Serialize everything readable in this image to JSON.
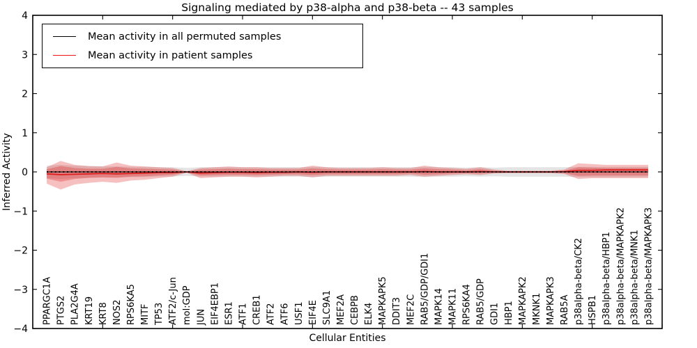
{
  "figure": {
    "title": "Signaling mediated by p38-alpha and p38-beta -- 43 samples",
    "xlabel": "Cellular Entities",
    "ylabel": "Inferred Activity"
  },
  "legend": {
    "items": [
      {
        "name": "permuted-mean",
        "label": "Mean activity in all permuted samples",
        "color": "#000000"
      },
      {
        "name": "patient-mean",
        "label": "Mean activity in patient samples",
        "color": "#ee1111"
      }
    ]
  },
  "chart_data": {
    "type": "line",
    "title": "Signaling mediated by p38-alpha and p38-beta -- 43 samples",
    "xlabel": "Cellular Entities",
    "ylabel": "Inferred Activity",
    "ylim": [
      -4,
      4
    ],
    "yticks": [
      4,
      3,
      2,
      1,
      0,
      -1,
      -2,
      -3,
      -4
    ],
    "ytick_labels": [
      "4",
      "3",
      "2",
      "1",
      "0",
      "−1",
      "−2",
      "−3",
      "−4"
    ],
    "xlim": [
      0,
      45
    ],
    "xticks_numeric": [
      0,
      5,
      10,
      15,
      20,
      25,
      30,
      35,
      40,
      45
    ],
    "grid": false,
    "legend_position": "upper-left",
    "categories": [
      "PPARGC1A",
      "PTGS2",
      "PLA2G4A",
      "KRT19",
      "KRT8",
      "NOS2",
      "RPS6KA5",
      "MITF",
      "TP53",
      "ATF2/c-Jun",
      "mol:GDP",
      "JUN",
      "EIF4EBP1",
      "ESR1",
      "ATF1",
      "CREB1",
      "ATF2",
      "ATF6",
      "USF1",
      "EIF4E",
      "SLC9A1",
      "MEF2A",
      "CEBPB",
      "ELK4",
      "MAPKAPK5",
      "DDIT3",
      "MEF2C",
      "RAB5/GDP/GDI1",
      "MAPK14",
      "MAPK11",
      "RPS6KA4",
      "RAB5/GDP",
      "GDI1",
      "HBP1",
      "MAPKAPK2",
      "MKNK1",
      "MAPKAPK3",
      "RAB5A",
      "p38alpha-beta/CK2",
      "HSPB1",
      "p38alpha-beta/HBP1",
      "p38alpha-beta/MAPKAPK2",
      "p38alpha-beta/MNK1",
      "p38alpha-beta/MAPKAPK3"
    ],
    "series": [
      {
        "name": "Mean activity in all permuted samples",
        "color": "#000000",
        "style": "dotted",
        "values": [
          0,
          0,
          0,
          0,
          0,
          0,
          0,
          0,
          0,
          0,
          0,
          0,
          0,
          0,
          0,
          0,
          0,
          0,
          0,
          0,
          0,
          0,
          0,
          0,
          0,
          0,
          0,
          0,
          0,
          0,
          0,
          0,
          0,
          0,
          0,
          0,
          0,
          0,
          0,
          0,
          0,
          0,
          0,
          0
        ]
      },
      {
        "name": "Mean activity in patient samples",
        "color": "#dd1e1e",
        "style": "solid",
        "values": [
          -0.05,
          -0.07,
          -0.06,
          -0.05,
          -0.04,
          -0.05,
          -0.04,
          -0.03,
          -0.02,
          -0.02,
          0,
          -0.03,
          -0.02,
          -0.01,
          -0.01,
          -0.02,
          -0.01,
          -0.01,
          0,
          -0.01,
          0,
          0,
          0,
          0,
          0,
          0,
          0,
          0.01,
          0,
          0,
          0,
          0.01,
          0,
          0,
          0,
          0,
          0,
          0.01,
          0.04,
          0.04,
          0.05,
          0.05,
          0.05,
          0.05
        ]
      }
    ],
    "bands": [
      {
        "name": "permuted-samples-range",
        "color": "rgba(130,130,130,0.22)",
        "upper": [
          0.16,
          0.18,
          0.16,
          0.15,
          0.14,
          0.14,
          0.13,
          0.13,
          0.12,
          0.12,
          0.1,
          0.12,
          0.12,
          0.12,
          0.12,
          0.12,
          0.12,
          0.12,
          0.12,
          0.13,
          0.12,
          0.12,
          0.12,
          0.12,
          0.12,
          0.12,
          0.12,
          0.13,
          0.12,
          0.12,
          0.11,
          0.12,
          0.11,
          0.12,
          0.12,
          0.12,
          0.12,
          0.12,
          0.13,
          0.13,
          0.13,
          0.13,
          0.13,
          0.13
        ],
        "lower": [
          -0.16,
          -0.18,
          -0.16,
          -0.15,
          -0.14,
          -0.14,
          -0.13,
          -0.13,
          -0.12,
          -0.12,
          -0.1,
          -0.12,
          -0.12,
          -0.12,
          -0.12,
          -0.12,
          -0.12,
          -0.12,
          -0.12,
          -0.13,
          -0.12,
          -0.12,
          -0.12,
          -0.12,
          -0.12,
          -0.12,
          -0.12,
          -0.13,
          -0.12,
          -0.12,
          -0.11,
          -0.12,
          -0.11,
          -0.12,
          -0.12,
          -0.12,
          -0.12,
          -0.12,
          -0.13,
          -0.13,
          -0.13,
          -0.13,
          -0.13,
          -0.13
        ]
      },
      {
        "name": "patient-samples-outer-range",
        "color": "rgba(221,30,30,0.28)",
        "upper": [
          0.12,
          0.28,
          0.18,
          0.15,
          0.14,
          0.24,
          0.16,
          0.14,
          0.12,
          0.1,
          0.02,
          0.1,
          0.12,
          0.14,
          0.12,
          0.12,
          0.1,
          0.1,
          0.1,
          0.16,
          0.12,
          0.1,
          0.1,
          0.1,
          0.12,
          0.1,
          0.1,
          0.16,
          0.12,
          0.1,
          0.08,
          0.12,
          0.06,
          0.03,
          0.03,
          0.03,
          0.03,
          0.06,
          0.22,
          0.2,
          0.18,
          0.18,
          0.18,
          0.18
        ],
        "lower": [
          -0.3,
          -0.45,
          -0.32,
          -0.28,
          -0.25,
          -0.28,
          -0.22,
          -0.2,
          -0.16,
          -0.12,
          -0.02,
          -0.16,
          -0.14,
          -0.12,
          -0.12,
          -0.14,
          -0.12,
          -0.1,
          -0.1,
          -0.14,
          -0.1,
          -0.1,
          -0.1,
          -0.1,
          -0.1,
          -0.1,
          -0.08,
          -0.12,
          -0.1,
          -0.08,
          -0.06,
          -0.08,
          -0.04,
          -0.03,
          -0.03,
          -0.03,
          -0.03,
          -0.05,
          -0.18,
          -0.16,
          -0.16,
          -0.16,
          -0.16,
          -0.16
        ]
      },
      {
        "name": "patient-samples-inner-range",
        "color": "rgba(221,30,30,0.30)",
        "upper": [
          0.07,
          0.15,
          0.1,
          0.08,
          0.08,
          0.13,
          0.09,
          0.08,
          0.07,
          0.06,
          0.01,
          0.06,
          0.07,
          0.08,
          0.07,
          0.07,
          0.06,
          0.06,
          0.06,
          0.09,
          0.07,
          0.06,
          0.06,
          0.06,
          0.07,
          0.06,
          0.06,
          0.09,
          0.07,
          0.06,
          0.04,
          0.07,
          0.03,
          0.02,
          0.02,
          0.02,
          0.02,
          0.03,
          0.12,
          0.11,
          0.1,
          0.1,
          0.1,
          0.1
        ],
        "lower": [
          -0.17,
          -0.25,
          -0.18,
          -0.15,
          -0.14,
          -0.15,
          -0.12,
          -0.11,
          -0.09,
          -0.07,
          -0.01,
          -0.09,
          -0.08,
          -0.07,
          -0.07,
          -0.08,
          -0.07,
          -0.06,
          -0.06,
          -0.08,
          -0.06,
          -0.06,
          -0.06,
          -0.06,
          -0.06,
          -0.06,
          -0.04,
          -0.07,
          -0.06,
          -0.04,
          -0.03,
          -0.04,
          -0.02,
          -0.02,
          -0.02,
          -0.02,
          -0.02,
          -0.03,
          -0.1,
          -0.09,
          -0.09,
          -0.09,
          -0.09,
          -0.09
        ]
      }
    ],
    "colors": {
      "patient_line": "#dd1e1e",
      "permuted_line": "#000000",
      "band_red": "rgba(221,30,30,0.28)",
      "band_gray": "rgba(130,130,130,0.22)",
      "spine": "#000000"
    }
  }
}
